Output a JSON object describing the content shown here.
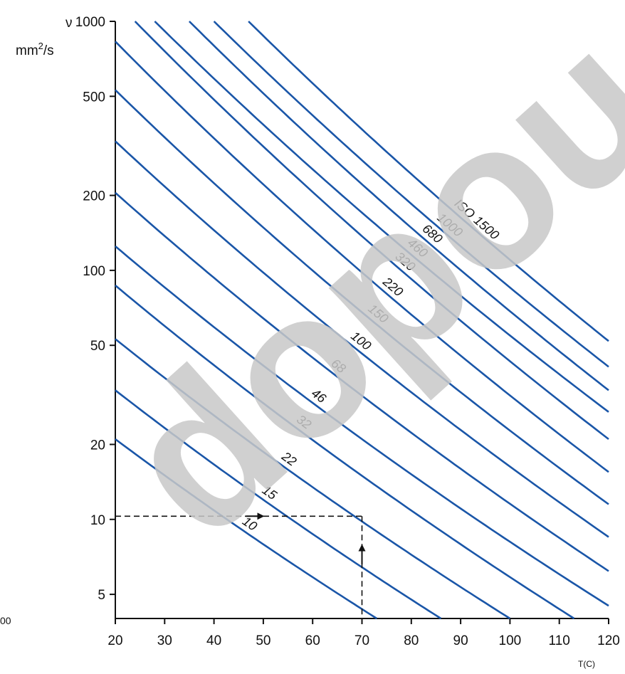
{
  "chart_data": {
    "type": "line",
    "title": "",
    "ylabel_symbol": "ν",
    "ylabel_unit": "mm",
    "ylabel_unit_sup": "2",
    "ylabel_unit_tail": "/s",
    "xlabel": "T(C)",
    "y_scale": "log",
    "x_range": [
      20,
      120
    ],
    "y_range": [
      4,
      1000
    ],
    "x_ticks": [
      20,
      30,
      40,
      50,
      60,
      70,
      80,
      90,
      100,
      110,
      120
    ],
    "x_tick_labels": [
      "20",
      "30",
      "40",
      "50",
      "60",
      "70",
      "80",
      "90",
      "100",
      "110",
      "120"
    ],
    "y_ticks": [
      5,
      10,
      20,
      50,
      100,
      200,
      500,
      1000
    ],
    "y_tick_labels": [
      "5",
      "10",
      "20",
      "50",
      "100",
      "200",
      "500",
      "1000"
    ],
    "grid": false,
    "line_color": "#1a56a8",
    "series": [
      {
        "name": "10",
        "label": "10",
        "points": [
          [
            20,
            21
          ],
          [
            73,
            4
          ]
        ]
      },
      {
        "name": "15",
        "label": "15",
        "points": [
          [
            20,
            33
          ],
          [
            86,
            4
          ]
        ]
      },
      {
        "name": "22",
        "label": "22",
        "points": [
          [
            20,
            53
          ],
          [
            100,
            4
          ]
        ]
      },
      {
        "name": "32",
        "label": "32",
        "points": [
          [
            20,
            87
          ],
          [
            113,
            4
          ]
        ]
      },
      {
        "name": "46",
        "label": "46",
        "points": [
          [
            20,
            125
          ],
          [
            120,
            4.5
          ]
        ]
      },
      {
        "name": "68",
        "label": "68",
        "points": [
          [
            20,
            205
          ],
          [
            120,
            6.2
          ]
        ]
      },
      {
        "name": "100",
        "label": "100",
        "points": [
          [
            20,
            330
          ],
          [
            120,
            8.5
          ]
        ]
      },
      {
        "name": "150",
        "label": "150",
        "points": [
          [
            20,
            530
          ],
          [
            120,
            11.5
          ]
        ]
      },
      {
        "name": "220",
        "label": "220",
        "points": [
          [
            20,
            830
          ],
          [
            120,
            15.5
          ]
        ]
      },
      {
        "name": "320",
        "label": "320",
        "points": [
          [
            24,
            1000
          ],
          [
            120,
            21
          ]
        ]
      },
      {
        "name": "460",
        "label": "460",
        "points": [
          [
            28,
            1000
          ],
          [
            120,
            27
          ]
        ]
      },
      {
        "name": "680",
        "label": "680",
        "points": [
          [
            35,
            1000
          ],
          [
            120,
            33
          ]
        ]
      },
      {
        "name": "1000",
        "label": "1000",
        "points": [
          [
            40,
            1000
          ],
          [
            120,
            41
          ]
        ]
      },
      {
        "name": "1500",
        "label": "ISO 1500",
        "points": [
          [
            47,
            1000
          ],
          [
            120,
            52
          ]
        ]
      }
    ],
    "example_path": {
      "temperature": 70,
      "viscosity": 10.3
    },
    "left_edge_fragment": "00",
    "watermark": "dopou"
  }
}
